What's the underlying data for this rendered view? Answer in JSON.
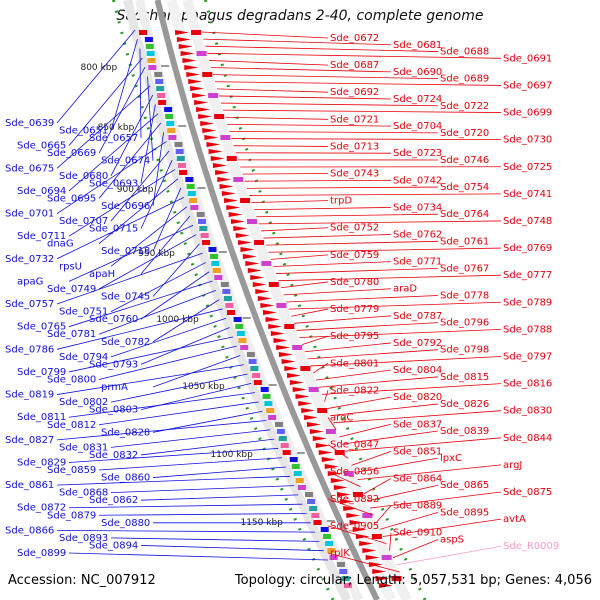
{
  "title": "Saccharophagus degradans 2-40, complete genome",
  "accession": "Accession: NC_007912",
  "summary": "Topology: circular; Length: 5,057,531 bp; Genes: 4,056",
  "colors": {
    "forward": "#e8000c",
    "reverse": "#1010e0",
    "rna": "#ff99cc",
    "backbone": "#999999",
    "tick": "#1a8a1a"
  },
  "scale_ticks": [
    "800 kbp",
    "850 kbp",
    "900 kbp",
    "950 kbp",
    "1000 kbp",
    "1050 kbp",
    "1100 kbp",
    "1150 kbp"
  ],
  "left_labels": [
    "Sde_0639",
    "Sde_0651",
    "Sde_0657",
    "Sde_0665",
    "Sde_0669",
    "Sde_0674",
    "Sde_0675",
    "Sde_0680",
    "Sde_0693",
    "Sde_0694",
    "Sde_0695",
    "Sde_0696",
    "Sde_0701",
    "Sde_0707",
    "Sde_0715",
    "Sde_0711",
    "dnaG",
    "Sde_0718",
    "Sde_0732",
    "rpsU",
    "apaH",
    "apaG",
    "Sde_0749",
    "Sde_0745",
    "Sde_0757",
    "Sde_0751",
    "Sde_0760",
    "Sde_0765",
    "Sde_0781",
    "Sde_0782",
    "Sde_0786",
    "Sde_0794",
    "Sde_0793",
    "Sde_0799",
    "Sde_0800",
    "prmA",
    "Sde_0819",
    "Sde_0802",
    "Sde_0803",
    "Sde_0811",
    "Sde_0812",
    "Sde_0828",
    "Sde_0827",
    "Sde_0831",
    "Sde_0832",
    "Sde_0829",
    "Sde_0859",
    "Sde_0860",
    "Sde_0861",
    "Sde_0868",
    "Sde_0862",
    "Sde_0872",
    "Sde_0879",
    "Sde_0880",
    "Sde_0866",
    "Sde_0893",
    "Sde_0894",
    "Sde_0899"
  ],
  "right_labels": [
    "Sde_0672",
    "Sde_0681",
    "Sde_0688",
    "Sde_0691",
    "Sde_0687",
    "Sde_0690",
    "Sde_0689",
    "Sde_0697",
    "Sde_0692",
    "Sde_0724",
    "Sde_0722",
    "Sde_0699",
    "Sde_0721",
    "Sde_0704",
    "Sde_0720",
    "Sde_0730",
    "Sde_0713",
    "Sde_0723",
    "Sde_0746",
    "Sde_0725",
    "Sde_0743",
    "Sde_0742",
    "Sde_0754",
    "Sde_0741",
    "trpD",
    "Sde_0734",
    "Sde_0764",
    "Sde_0748",
    "Sde_0752",
    "Sde_0762",
    "Sde_0761",
    "Sde_0769",
    "Sde_0759",
    "Sde_0771",
    "Sde_0767",
    "Sde_0777",
    "Sde_0780",
    "araD",
    "Sde_0778",
    "Sde_0789",
    "Sde_0779",
    "Sde_0787",
    "Sde_0796",
    "Sde_0788",
    "Sde_0795",
    "Sde_0792",
    "Sde_0798",
    "Sde_0797",
    "Sde_0801",
    "Sde_0804",
    "Sde_0815",
    "Sde_0816",
    "Sde_0822",
    "Sde_0820",
    "Sde_0826",
    "Sde_0830",
    "argC",
    "Sde_0837",
    "Sde_0839",
    "Sde_0844",
    "Sde_0847",
    "Sde_0851",
    "lpxC",
    "argJ",
    "Sde_0856",
    "Sde_0864",
    "Sde_0865",
    "Sde_0875",
    "Sde_0882",
    "Sde_0889",
    "Sde_0895",
    "avtA",
    "Sde_0905",
    "Sde_0910",
    "aspS",
    "Sde_R0009",
    "rplK"
  ]
}
